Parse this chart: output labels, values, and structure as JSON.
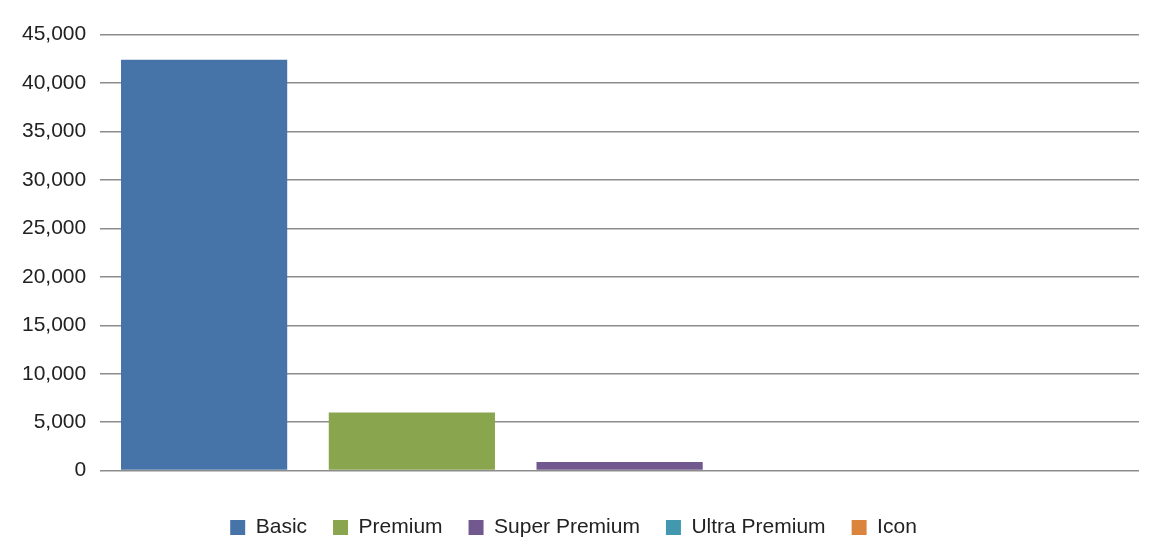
{
  "chart_data": {
    "type": "bar",
    "categories": [
      null
    ],
    "series": [
      {
        "name": "Basic",
        "color": "#4674a8",
        "values": [
          42400
        ]
      },
      {
        "name": "Premium",
        "color": "#89a54e",
        "values": [
          6000
        ]
      },
      {
        "name": "Super Premium",
        "color": "#71588f",
        "values": [
          900
        ]
      },
      {
        "name": "Ultra Premium",
        "color": "#4198af",
        "values": [
          100
        ]
      },
      {
        "name": "Icon",
        "color": "#db843d",
        "values": [
          0
        ]
      }
    ],
    "ylim": [
      0,
      45000
    ],
    "yticks": [
      0,
      {
        "value": 5000,
        "label": "5,000"
      },
      {
        "value": 10000,
        "label": "10,000"
      },
      {
        "value": 15000,
        "label": "15,000"
      },
      {
        "value": 20000,
        "label": "20,000"
      },
      {
        "value": 25000,
        "label": "25,000"
      },
      {
        "value": 30000,
        "label": "30,000"
      },
      {
        "value": 35000,
        "label": "35,000"
      },
      {
        "value": 40000,
        "label": "40,000"
      },
      {
        "value": 45000,
        "label": "45,000"
      }
    ],
    "grid": "y",
    "legend": "bottom"
  }
}
